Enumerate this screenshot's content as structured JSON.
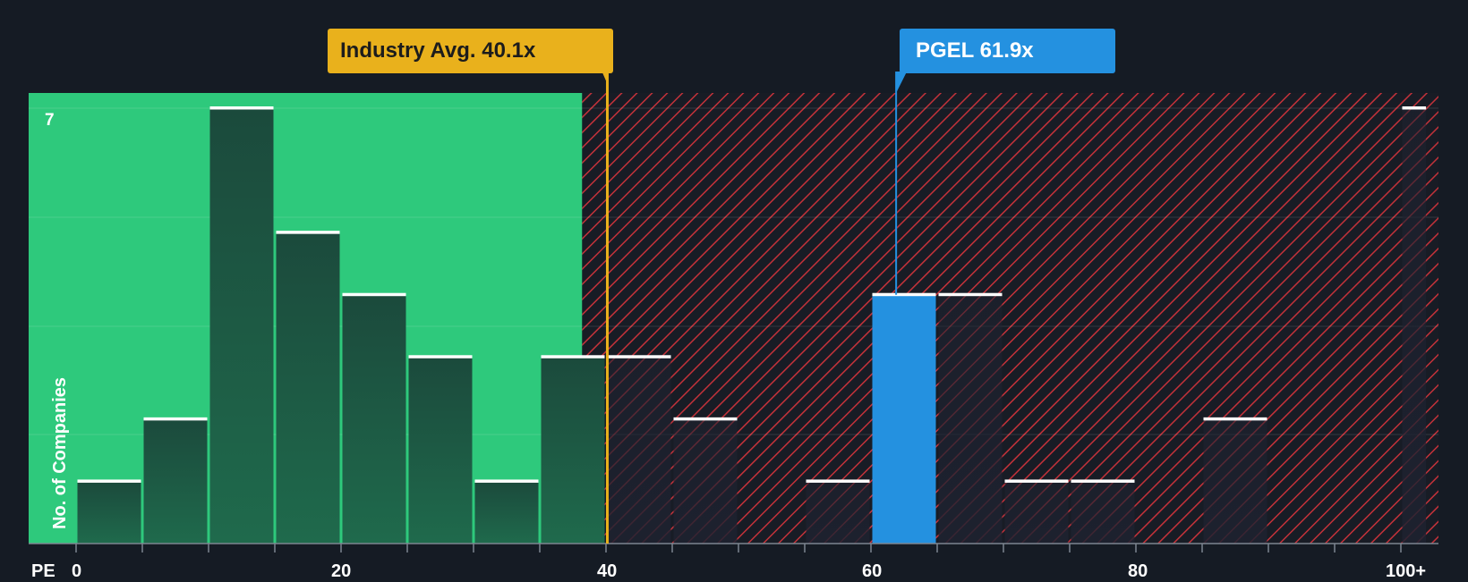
{
  "chart_data": {
    "type": "bar",
    "title": "",
    "xlabel": "PE",
    "ylabel": "No. of Companies",
    "xlim": [
      -5,
      102
    ],
    "ylim": [
      0,
      7
    ],
    "x_ticks": [
      0,
      20,
      40,
      60,
      80,
      100
    ],
    "x_tick_labels": [
      "0",
      "20",
      "40",
      "60",
      "80",
      "100+"
    ],
    "y_tick_label": "7",
    "bin_width": 5,
    "bars": [
      {
        "x0": 0,
        "x1": 5,
        "value": 1
      },
      {
        "x0": 5,
        "x1": 10,
        "value": 2
      },
      {
        "x0": 10,
        "x1": 15,
        "value": 7
      },
      {
        "x0": 15,
        "x1": 20,
        "value": 5
      },
      {
        "x0": 20,
        "x1": 25,
        "value": 4
      },
      {
        "x0": 25,
        "x1": 30,
        "value": 3
      },
      {
        "x0": 30,
        "x1": 35,
        "value": 1
      },
      {
        "x0": 35,
        "x1": 40,
        "value": 3
      },
      {
        "x0": 40,
        "x1": 45,
        "value": 3
      },
      {
        "x0": 45,
        "x1": 50,
        "value": 2
      },
      {
        "x0": 55,
        "x1": 60,
        "value": 1
      },
      {
        "x0": 60,
        "x1": 65,
        "value": 4,
        "highlight": true
      },
      {
        "x0": 65,
        "x1": 70,
        "value": 4
      },
      {
        "x0": 70,
        "x1": 75,
        "value": 1
      },
      {
        "x0": 75,
        "x1": 80,
        "value": 1
      },
      {
        "x0": 85,
        "x1": 90,
        "value": 2
      },
      {
        "x0": 100,
        "x1": 102,
        "value": 7
      }
    ],
    "industry_avg": {
      "value": 40.1,
      "label": "Industry Avg. 40.1x"
    },
    "company": {
      "value": 61.9,
      "label": "PGEL 61.9x"
    },
    "good_zone_end": 38.2
  },
  "colors": {
    "background": "#151b24",
    "good_zone": "#2ec97c",
    "bar_dark": "#1b4a3c",
    "bad_stripe": "#c4323a",
    "highlight": "#2491e0",
    "industry": "#e9b11c"
  }
}
